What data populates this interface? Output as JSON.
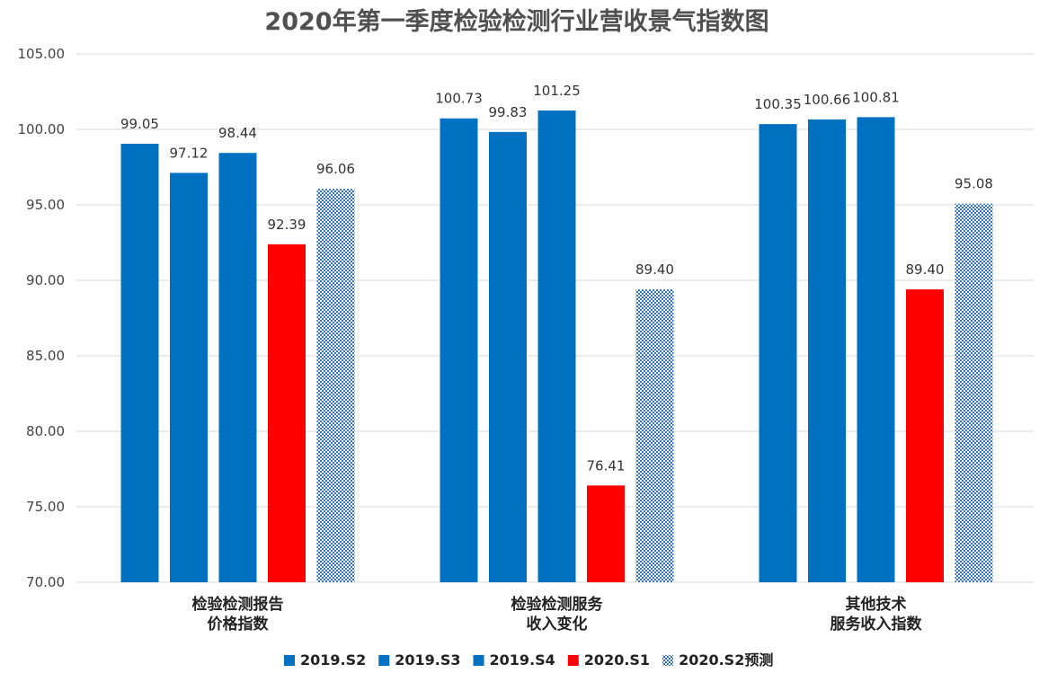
{
  "chart_data": {
    "type": "bar",
    "title": "2020年第一季度检验检测行业营收景气指数图",
    "categories": [
      [
        "检验检测报告",
        "价格指数"
      ],
      [
        "检验检测服务",
        "收入变化"
      ],
      [
        "其他技术",
        "服务收入指数"
      ]
    ],
    "series": [
      {
        "name": "2019.S2",
        "values": [
          99.05,
          100.73,
          100.35
        ],
        "color": "#0070C0",
        "pattern": "solid"
      },
      {
        "name": "2019.S3",
        "values": [
          97.12,
          99.83,
          100.66
        ],
        "color": "#0070C0",
        "pattern": "solid"
      },
      {
        "name": "2019.S4",
        "values": [
          98.44,
          101.25,
          100.81
        ],
        "color": "#0070C0",
        "pattern": "solid"
      },
      {
        "name": "2020.S1",
        "values": [
          92.39,
          76.41,
          89.4
        ],
        "color": "#FF0000",
        "pattern": "solid"
      },
      {
        "name": "2020.S2预测",
        "values": [
          96.06,
          89.4,
          95.08
        ],
        "color": "#2E75B6",
        "pattern": "dotted"
      }
    ],
    "ylim": [
      70,
      105
    ],
    "yticks": [
      70,
      75,
      80,
      85,
      90,
      95,
      100,
      105
    ],
    "ytick_format": "2 decimals",
    "data_labels": true,
    "grid": true,
    "legend_position": "bottom"
  }
}
